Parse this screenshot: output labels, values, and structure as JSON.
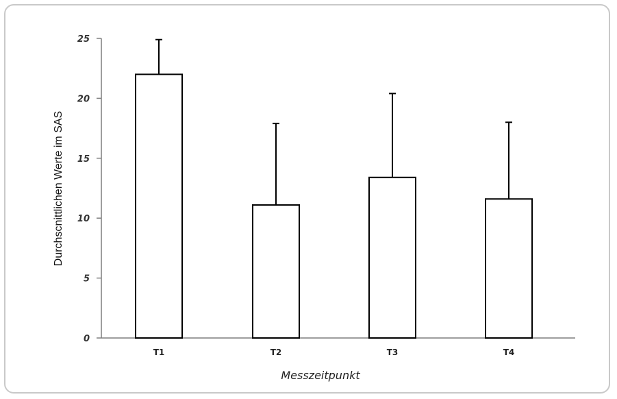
{
  "chart_data": {
    "type": "bar",
    "categories": [
      "T1",
      "T2",
      "T3",
      "T4"
    ],
    "values": [
      22.0,
      11.1,
      13.4,
      11.6
    ],
    "error_upper": [
      24.9,
      17.9,
      20.4,
      18.0
    ],
    "xlabel": "Messzeitpunkt",
    "ylabel": "Durchscnittlichen Werte im SAS",
    "ylim": [
      0,
      25
    ],
    "yticks": [
      0,
      5,
      10,
      15,
      20,
      25
    ],
    "grid": false,
    "legend": "none",
    "colors": {
      "bar_fill": "#ffffff",
      "bar_stroke": "#000000",
      "axis": "#7f7f7f"
    }
  }
}
